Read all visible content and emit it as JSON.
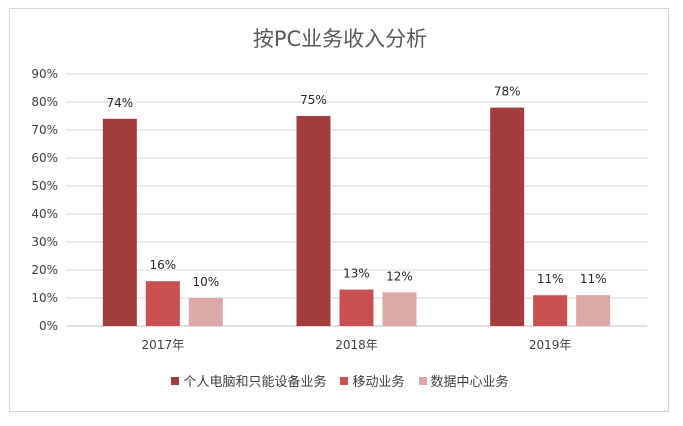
{
  "chart_data": {
    "type": "bar",
    "title": "按PC业务收入分析",
    "categories": [
      "2017年",
      "2018年",
      "2019年"
    ],
    "series": [
      {
        "name": "个人电脑和只能设备业务",
        "color": "#a33d3d",
        "values": [
          74,
          75,
          78
        ],
        "labels": [
          "74%",
          "75%",
          "78%"
        ]
      },
      {
        "name": "移动业务",
        "color": "#c85050",
        "values": [
          16,
          13,
          11
        ],
        "labels": [
          "16%",
          "13%",
          "11%"
        ]
      },
      {
        "name": "数据中心业务",
        "color": "#dca8a8",
        "values": [
          10,
          12,
          11
        ],
        "labels": [
          "10%",
          "12%",
          "11%"
        ]
      }
    ],
    "yticks": [
      "0%",
      "10%",
      "20%",
      "30%",
      "40%",
      "50%",
      "60%",
      "70%",
      "80%",
      "90%"
    ],
    "ylim": [
      0,
      90
    ],
    "grid": true,
    "legend_position": "bottom"
  }
}
